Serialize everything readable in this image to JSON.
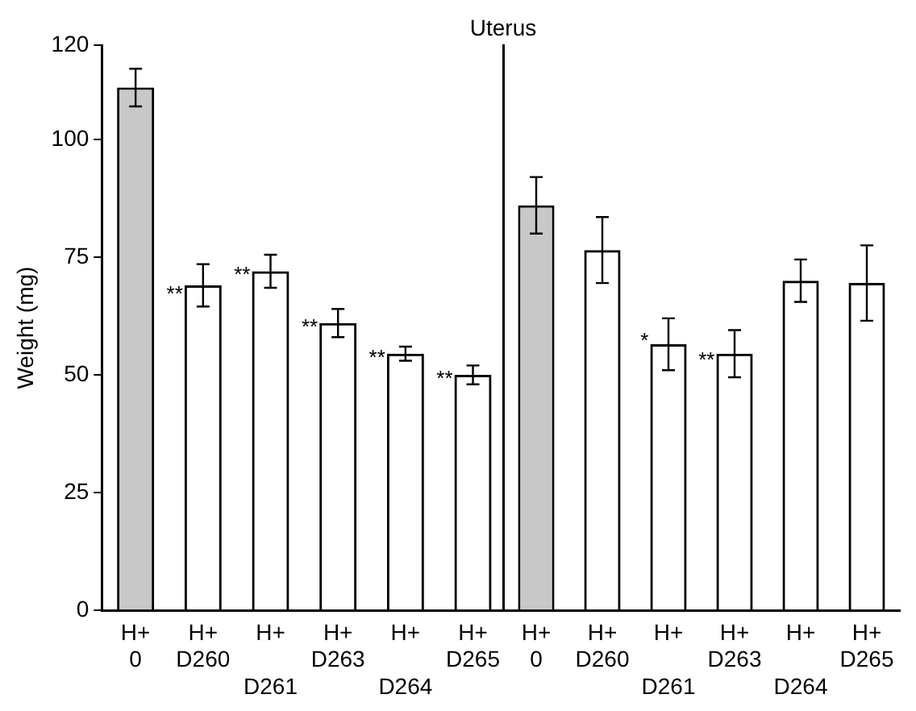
{
  "chart_data": [
    {
      "type": "bar",
      "ylabel": "Weight (mg)",
      "categories": [
        "H+ 0",
        "H+ D260",
        "H+ D261",
        "H+ D263",
        "H+ D264",
        "H+ D265"
      ],
      "values": [
        111,
        69,
        72,
        61,
        54.5,
        50
      ],
      "errors": [
        4,
        4.5,
        3.5,
        3,
        1.5,
        2
      ],
      "colors": [
        "#c8c8c8",
        "#000000",
        "#000000",
        "#000000",
        "#000000",
        "#000000"
      ],
      "ylim": [
        0,
        120
      ],
      "yticks": [
        0,
        25,
        50,
        75,
        100,
        120
      ],
      "grid": false,
      "legend": false,
      "annotations": [
        {
          "text": "**",
          "x": "H+ D260",
          "y": 67
        },
        {
          "text": "**",
          "x": "H+ D261",
          "y": 71
        },
        {
          "text": "**",
          "x": "H+ D263",
          "y": 60
        },
        {
          "text": "**",
          "x": "H+ D264",
          "y": 53.5
        },
        {
          "text": "**",
          "x": "H+ D265",
          "y": 49
        }
      ]
    },
    {
      "type": "bar",
      "title": "Uterus",
      "categories": [
        "H+ 0",
        "H+ D260",
        "H+ D261",
        "H+ D263",
        "H+ D264",
        "H+ D265"
      ],
      "values": [
        86,
        76.5,
        56.5,
        54.5,
        70,
        69.5
      ],
      "errors": [
        6,
        7,
        5.5,
        5,
        4.5,
        8
      ],
      "colors": [
        "#c8c8c8",
        "#000000",
        "#000000",
        "#000000",
        "#000000",
        "#000000"
      ],
      "ylim": [
        0,
        120
      ],
      "yticks": [
        0,
        25,
        50,
        75,
        100,
        120
      ],
      "grid": false,
      "legend": false,
      "tick_labels": "x",
      "annotations": [
        {
          "text": "*",
          "x": "H+ D261",
          "y": 57
        },
        {
          "text": "**",
          "x": "H+ D263",
          "y": 53
        }
      ]
    }
  ]
}
